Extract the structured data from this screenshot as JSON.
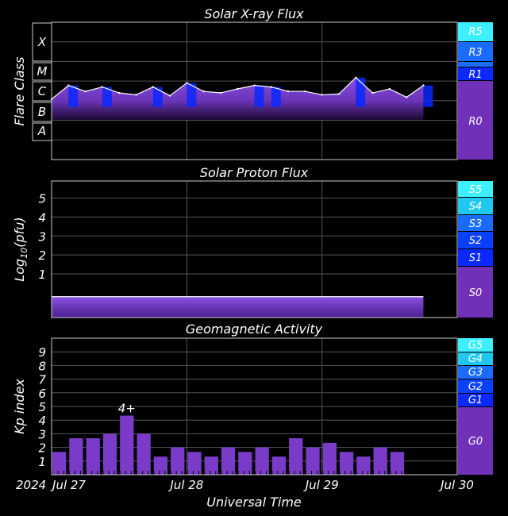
{
  "chart_data": [
    {
      "type": "area",
      "title": "Solar X-ray Flux",
      "ylabel": "Flare Class",
      "y_scale": "log",
      "ylim": [
        1e-09,
        0.01
      ],
      "flare_classes": [
        "X",
        "M",
        "C",
        "B",
        "A"
      ],
      "r_scale": [
        "R5",
        "R3",
        "R1",
        "R0"
      ],
      "x": [
        "2024-07-27T00",
        "2024-07-27T03",
        "2024-07-27T06",
        "2024-07-27T09",
        "2024-07-27T12",
        "2024-07-27T15",
        "2024-07-27T18",
        "2024-07-27T21",
        "2024-07-28T00",
        "2024-07-28T03",
        "2024-07-28T06",
        "2024-07-28T09",
        "2024-07-28T12",
        "2024-07-28T15",
        "2024-07-28T18",
        "2024-07-28T21",
        "2024-07-29T00",
        "2024-07-29T03",
        "2024-07-29T06",
        "2024-07-29T09",
        "2024-07-29T12",
        "2024-07-29T15",
        "2024-07-29T18"
      ],
      "values": [
        1.2e-06,
        6e-06,
        3e-06,
        5e-06,
        2.5e-06,
        2e-06,
        5e-06,
        1.8e-06,
        8e-06,
        3e-06,
        2.5e-06,
        4e-06,
        6e-06,
        5e-06,
        3e-06,
        3e-06,
        2e-06,
        2.2e-06,
        1.5e-05,
        2.5e-06,
        4e-06,
        1.5e-06,
        6e-06
      ]
    },
    {
      "type": "area",
      "title": "Solar Proton Flux",
      "ylabel": "Log10(pfu)",
      "ylabel_main": "Log",
      "ylabel_sub": "10",
      "ylabel_tail": "(pfu)",
      "ylim": [
        -1.3,
        5.9
      ],
      "yticks": [
        "1",
        "2",
        "3",
        "4",
        "5"
      ],
      "s_scale": [
        "S5",
        "S4",
        "S3",
        "S2",
        "S1",
        "S0"
      ],
      "x": [
        "2024-07-27T00",
        "2024-07-28T00",
        "2024-07-29T00",
        "2024-07-29T18"
      ],
      "values": [
        -0.2,
        -0.2,
        -0.2,
        -0.2
      ]
    },
    {
      "type": "bar",
      "title": "Geomagnetic Activity",
      "ylabel": "Kp index",
      "xlabel": "Universal Time",
      "ylim": [
        0,
        10
      ],
      "yticks": [
        "1",
        "2",
        "3",
        "4",
        "5",
        "6",
        "7",
        "8",
        "9"
      ],
      "g_scale": [
        "G5",
        "G4",
        "G3",
        "G2",
        "G1",
        "G0"
      ],
      "x": [
        "2024-07-27T00",
        "2024-07-27T03",
        "2024-07-27T06",
        "2024-07-27T09",
        "2024-07-27T12",
        "2024-07-27T15",
        "2024-07-27T18",
        "2024-07-27T21",
        "2024-07-28T00",
        "2024-07-28T03",
        "2024-07-28T06",
        "2024-07-28T09",
        "2024-07-28T12",
        "2024-07-28T15",
        "2024-07-28T18",
        "2024-07-28T21",
        "2024-07-29T00",
        "2024-07-29T03",
        "2024-07-29T06",
        "2024-07-29T09",
        "2024-07-29T12",
        "2024-07-29T15"
      ],
      "values": [
        1.67,
        2.67,
        2.67,
        3.0,
        4.33,
        3.0,
        1.33,
        2.0,
        1.67,
        1.33,
        2.0,
        1.67,
        2.0,
        1.33,
        2.67,
        2.0,
        2.33,
        1.67,
        1.33,
        2.0,
        1.67,
        0
      ],
      "annotation": {
        "text": "4+",
        "index": 4
      }
    }
  ],
  "x_axis": {
    "year": "2024",
    "tick_labels": [
      "Jul 27",
      "Jul 28",
      "Jul 29",
      "Jul 30"
    ],
    "range": [
      "2024-07-27T00",
      "2024-07-30T00"
    ]
  },
  "colors": {
    "purple": "#7a3cc8",
    "blue": "#0a28ff",
    "mid_blue": "#1a6cff",
    "light_blue": "#3aa0ff",
    "cyan": "#3ef0ff",
    "scale_purple": "#7030b8"
  }
}
